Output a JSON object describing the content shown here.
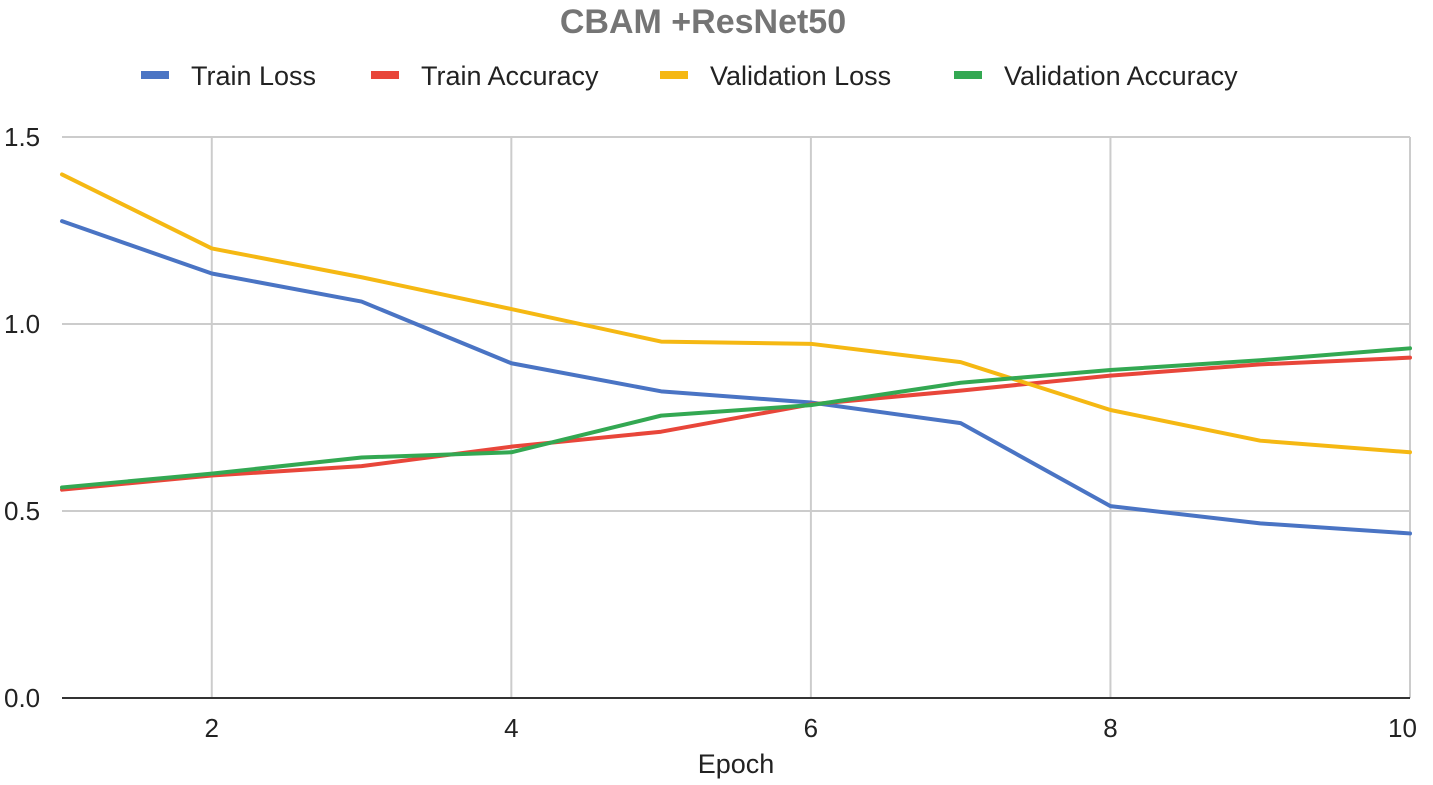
{
  "chart_data": {
    "type": "line",
    "title": "CBAM +ResNet50",
    "xlabel": "Epoch",
    "ylabel": "",
    "xlim": [
      1,
      10
    ],
    "ylim": [
      0,
      1.5
    ],
    "x": [
      1,
      2,
      3,
      4,
      5,
      6,
      7,
      8,
      9,
      10
    ],
    "xticks": [
      2,
      4,
      6,
      8,
      10
    ],
    "xtick_labels": [
      "2",
      "4",
      "6",
      "8",
      "10"
    ],
    "yticks": [
      0,
      0.5,
      1.0,
      1.5
    ],
    "ytick_labels": [
      "0.0",
      "0.5",
      "1.0",
      "1.5"
    ],
    "grid": true,
    "legend_position": "top",
    "series": [
      {
        "name": "Train Loss",
        "color": "#4a74c4",
        "values": [
          1.275,
          1.135,
          1.06,
          0.895,
          0.82,
          0.79,
          0.735,
          0.513,
          0.467,
          0.44
        ]
      },
      {
        "name": "Train Accuracy",
        "color": "#e8463a",
        "values": [
          0.557,
          0.595,
          0.62,
          0.672,
          0.712,
          0.785,
          0.822,
          0.862,
          0.892,
          0.91
        ]
      },
      {
        "name": "Validation Loss",
        "color": "#f5b813",
        "values": [
          1.4,
          1.202,
          1.125,
          1.04,
          0.953,
          0.947,
          0.898,
          0.77,
          0.688,
          0.657
        ]
      },
      {
        "name": "Validation Accuracy",
        "color": "#33a852",
        "values": [
          0.563,
          0.6,
          0.643,
          0.657,
          0.755,
          0.783,
          0.843,
          0.877,
          0.903,
          0.935
        ]
      }
    ]
  }
}
